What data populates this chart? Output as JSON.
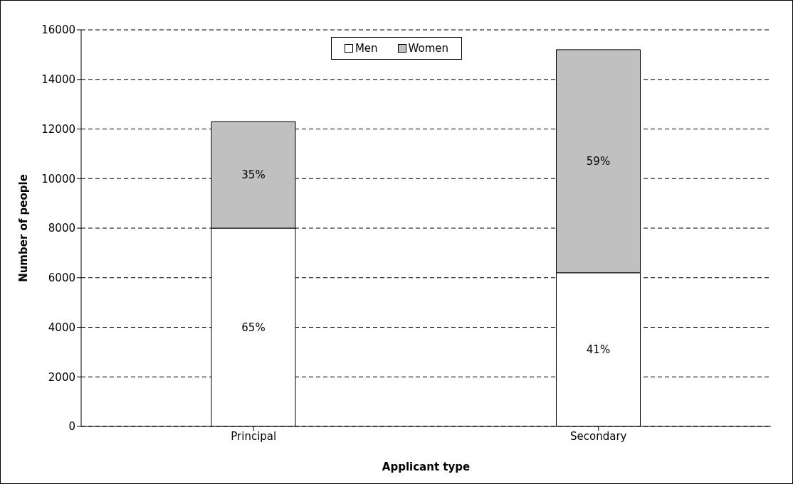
{
  "chart_data": {
    "type": "bar",
    "stacked": true,
    "xlabel": "Applicant type",
    "ylabel": "Number of people",
    "categories": [
      "Principal",
      "Secondary"
    ],
    "series": [
      {
        "name": "Men",
        "color": "#ffffff",
        "values": [
          8000,
          6200
        ]
      },
      {
        "name": "Women",
        "color": "#c0c0c0",
        "values": [
          4300,
          9000
        ]
      }
    ],
    "annotations": [
      "65%",
      "41%",
      "35%",
      "59%"
    ],
    "ylim": [
      0,
      16000
    ],
    "yticks": [
      0,
      2000,
      4000,
      6000,
      8000,
      10000,
      12000,
      14000,
      16000
    ],
    "grid": "y",
    "legend": "top"
  }
}
